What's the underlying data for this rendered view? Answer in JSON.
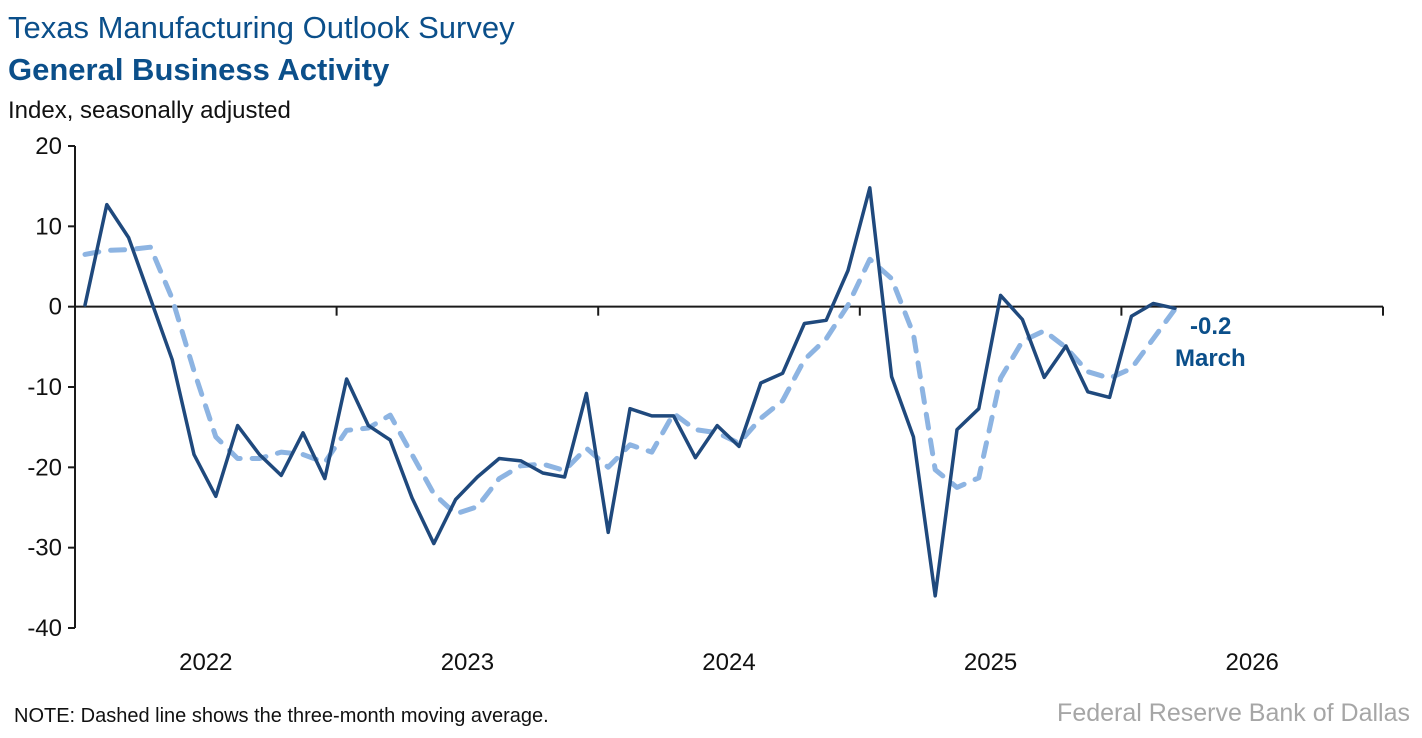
{
  "header": {
    "title": "Texas Manufacturing Outlook Survey",
    "subtitle": "General Business Activity",
    "units": "Index, seasonally adjusted"
  },
  "footer": {
    "note": "NOTE: Dashed line shows the three-month moving average.",
    "source": "Federal Reserve Bank of Dallas"
  },
  "chart_data": {
    "type": "line",
    "title": "General Business Activity",
    "ylabel": "Index, seasonally adjusted",
    "ylim": [
      -40,
      20
    ],
    "yticks": [
      "20",
      "10",
      "0",
      "-10",
      "-20",
      "-30",
      "-40"
    ],
    "xticks": [
      "2022",
      "2023",
      "2024",
      "2025",
      "2026"
    ],
    "xlim": [
      "2022-01",
      "2026-12"
    ],
    "grid": false,
    "x": [
      "2022-01",
      "2022-02",
      "2022-03",
      "2022-04",
      "2022-05",
      "2022-06",
      "2022-07",
      "2022-08",
      "2022-09",
      "2022-10",
      "2022-11",
      "2022-12",
      "2023-01",
      "2023-02",
      "2023-03",
      "2023-04",
      "2023-05",
      "2023-06",
      "2023-07",
      "2023-08",
      "2023-09",
      "2023-10",
      "2023-11",
      "2023-12",
      "2024-01",
      "2024-02",
      "2024-03",
      "2024-04",
      "2024-05",
      "2024-06",
      "2024-07",
      "2024-08",
      "2024-09",
      "2024-10",
      "2024-11",
      "2024-12",
      "2025-01",
      "2025-02",
      "2025-03",
      "2025-04",
      "2025-05",
      "2025-06",
      "2025-07",
      "2025-08",
      "2025-09",
      "2025-10",
      "2025-11",
      "2025-12",
      "2026-01",
      "2026-02",
      "2026-03"
    ],
    "series": [
      {
        "style": "solid",
        "color": "#1f497d",
        "values": [
          0.2,
          12.7,
          8.6,
          1.0,
          -6.6,
          -18.4,
          -23.6,
          -14.8,
          -18.4,
          -21.0,
          -15.7,
          -21.4,
          -9.0,
          -14.8,
          -16.6,
          -23.8,
          -29.5,
          -24.0,
          -21.2,
          -18.9,
          -19.2,
          -20.7,
          -21.2,
          -10.8,
          -28.1,
          -12.7,
          -13.6,
          -13.6,
          -18.8,
          -14.8,
          -17.4,
          -9.5,
          -8.3,
          -2.1,
          -1.7,
          4.5,
          14.8,
          -8.7,
          -16.2,
          -36.0,
          -15.3,
          -12.7,
          1.4,
          -1.6,
          -8.8,
          -4.9,
          -10.6,
          -11.3,
          -1.2,
          0.4,
          -0.2
        ]
      },
      {
        "style": "dashed",
        "color": "#8db4e2",
        "values": [
          6.5,
          7.0,
          7.1,
          7.4,
          1.0,
          -8.0,
          -16.2,
          -18.9,
          -18.9,
          -18.1,
          -18.4,
          -19.4,
          -15.4,
          -15.1,
          -13.5,
          -18.4,
          -23.3,
          -25.8,
          -24.9,
          -21.4,
          -19.8,
          -19.6,
          -20.4,
          -17.6,
          -20.0,
          -17.2,
          -18.1,
          -13.3,
          -15.3,
          -15.7,
          -17.0,
          -13.9,
          -11.7,
          -6.6,
          -4.0,
          0.2,
          5.9,
          3.5,
          -3.4,
          -20.3,
          -22.5,
          -21.3,
          -8.9,
          -4.3,
          -3.0,
          -5.1,
          -8.1,
          -8.9,
          -7.7,
          -4.0,
          -0.3
        ]
      }
    ],
    "annotation": {
      "value": "-0.2",
      "label": "March"
    }
  }
}
